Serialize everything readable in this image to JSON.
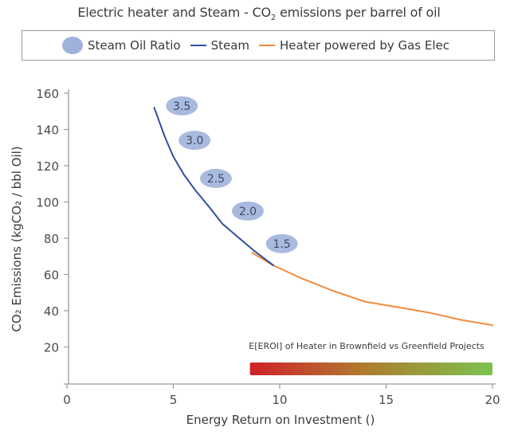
{
  "chart_data": {
    "type": "line",
    "title": "Electric heater and Steam - CO₂ emissions per barrel of oil",
    "xlabel": "Energy Return on Investment ()",
    "ylabel": "CO₂ Emissions (kgCO₂ / bbl Oil)",
    "xlim": [
      0,
      20
    ],
    "ylim": [
      0,
      160
    ],
    "x_ticks": [
      0,
      5,
      10,
      15,
      20
    ],
    "y_ticks": [
      20,
      40,
      60,
      80,
      100,
      120,
      140,
      160
    ],
    "grid": false,
    "legend_position": "top",
    "legend": [
      "Steam Oil Ratio",
      "Steam",
      "Heater powered by Gas Elec"
    ],
    "series": [
      {
        "name": "Steam",
        "color": "#2f4f9f",
        "points": [
          [
            4.1,
            152
          ],
          [
            4.6,
            136
          ],
          [
            5.0,
            125
          ],
          [
            5.5,
            115
          ],
          [
            6.0,
            107
          ],
          [
            6.7,
            97
          ],
          [
            7.3,
            88
          ],
          [
            8.0,
            81
          ],
          [
            8.8,
            73
          ],
          [
            9.7,
            65
          ]
        ]
      },
      {
        "name": "Heater powered by Gas Elec",
        "color": "#f08a3c",
        "points": [
          [
            8.7,
            72
          ],
          [
            9.7,
            65
          ],
          [
            11.0,
            58
          ],
          [
            12.5,
            51
          ],
          [
            14.0,
            45
          ],
          [
            15.5,
            42
          ],
          [
            17.0,
            39
          ],
          [
            18.5,
            35
          ],
          [
            20.0,
            32
          ]
        ]
      }
    ],
    "annotations": [
      {
        "label": "3.5",
        "x": 5.4,
        "y": 153
      },
      {
        "label": "3.0",
        "x": 6.0,
        "y": 134
      },
      {
        "label": "2.5",
        "x": 7.0,
        "y": 113
      },
      {
        "label": "2.0",
        "x": 8.5,
        "y": 95
      },
      {
        "label": "1.5",
        "x": 10.1,
        "y": 77
      }
    ],
    "color_bar": {
      "label": "E[EROI] of Heater in Brownfield vs Greenfield Projects",
      "x_range": [
        8.6,
        20
      ],
      "gradient": [
        "#d0202a",
        "#b0782e",
        "#7dc250"
      ]
    }
  },
  "labels": {
    "title_main": "Electric heater and Steam - CO",
    "title_sub": "2",
    "title_tail": " emissions per barrel of oil",
    "legend_bubble": "Steam Oil Ratio",
    "legend_steam": "Steam",
    "legend_heater": "Heater powered by Gas Elec",
    "bar_caption": "E[EROI] of Heater in Brownfield vs Greenfield Projects",
    "xlabel": "Energy Return on Investment ()",
    "ylabel": "CO₂ Emissions (kgCO₂ / bbl Oil)"
  }
}
